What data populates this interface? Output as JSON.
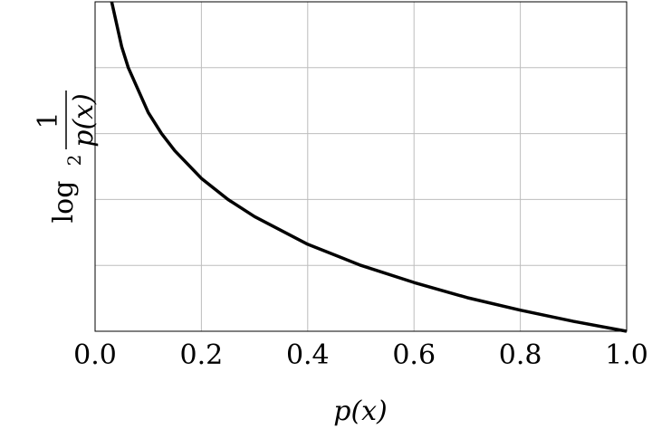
{
  "chart_data": {
    "type": "line",
    "title": "",
    "xlabel": "p(x)",
    "ylabel": {
      "numerator": "1",
      "log": "log",
      "base": "2",
      "denominator": "p(x)"
    },
    "xlim": [
      0,
      1
    ],
    "ylim": [
      0,
      5
    ],
    "x_ticks": [
      "0.0",
      "0.2",
      "0.4",
      "0.6",
      "0.8",
      "1.0"
    ],
    "y_tick_labels_shown": false,
    "grid": true,
    "legend": "none",
    "function": "log2(1/p(x))",
    "series": [
      {
        "x": [
          0.03125,
          0.05,
          0.0625,
          0.1,
          0.125,
          0.15,
          0.2,
          0.25,
          0.3,
          0.4,
          0.5,
          0.6,
          0.7,
          0.8,
          0.9,
          1.0
        ],
        "values": [
          5.0,
          4.32,
          4.0,
          3.32,
          3.0,
          2.74,
          2.32,
          2.0,
          1.74,
          1.32,
          1.0,
          0.74,
          0.51,
          0.32,
          0.15,
          0.0
        ],
        "color": "#000000"
      }
    ]
  }
}
